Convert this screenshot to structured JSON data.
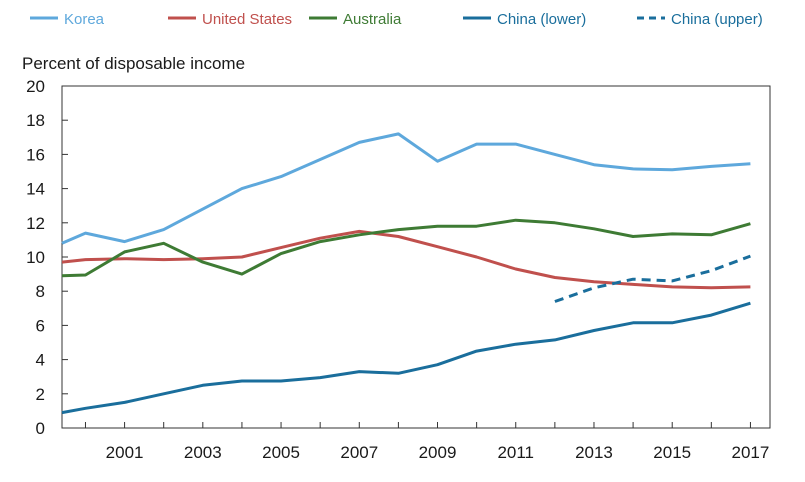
{
  "chart_data": {
    "type": "line",
    "ylabel": "Percent of disposable income",
    "xlabel": "",
    "title": "",
    "xlim": [
      1999.4,
      2017.5
    ],
    "ylim": [
      0,
      20
    ],
    "yticks": [
      0,
      2,
      4,
      6,
      8,
      10,
      12,
      14,
      16,
      18,
      20
    ],
    "xticks": [
      2001,
      2003,
      2005,
      2007,
      2009,
      2011,
      2013,
      2015,
      2017
    ],
    "legend_position": "top",
    "series": [
      {
        "name": "Korea",
        "color": "#5ea8dc",
        "dash": "solid",
        "x": [
          1999.4,
          2000,
          2001,
          2002,
          2003,
          2004,
          2005,
          2006,
          2007,
          2008,
          2009,
          2010,
          2011,
          2012,
          2013,
          2014,
          2015,
          2016,
          2017
        ],
        "values": [
          10.8,
          11.4,
          10.9,
          11.6,
          12.8,
          14.0,
          14.7,
          15.7,
          16.7,
          17.2,
          15.6,
          16.6,
          16.6,
          16.0,
          15.4,
          15.15,
          15.1,
          15.3,
          15.45
        ]
      },
      {
        "name": "United States",
        "color": "#c0504d",
        "dash": "solid",
        "x": [
          1999.4,
          2000,
          2001,
          2002,
          2003,
          2004,
          2005,
          2006,
          2007,
          2008,
          2009,
          2010,
          2011,
          2012,
          2013,
          2014,
          2015,
          2016,
          2017
        ],
        "values": [
          9.7,
          9.85,
          9.9,
          9.85,
          9.9,
          10.0,
          10.55,
          11.1,
          11.5,
          11.2,
          10.6,
          10.0,
          9.3,
          8.8,
          8.55,
          8.4,
          8.25,
          8.2,
          8.25
        ]
      },
      {
        "name": "Australia",
        "color": "#3e7b34",
        "dash": "solid",
        "x": [
          1999.4,
          2000,
          2001,
          2002,
          2003,
          2004,
          2005,
          2006,
          2007,
          2008,
          2009,
          2010,
          2011,
          2012,
          2013,
          2014,
          2015,
          2016,
          2017
        ],
        "values": [
          8.9,
          8.95,
          10.3,
          10.8,
          9.7,
          9.0,
          10.2,
          10.9,
          11.3,
          11.6,
          11.8,
          11.8,
          12.15,
          12.0,
          11.65,
          11.2,
          11.35,
          11.3,
          11.95
        ]
      },
      {
        "name": "China (lower)",
        "color": "#1a6e9c",
        "dash": "solid",
        "x": [
          1999.4,
          2000,
          2001,
          2002,
          2003,
          2004,
          2005,
          2006,
          2007,
          2008,
          2009,
          2010,
          2011,
          2012,
          2013,
          2014,
          2015,
          2016,
          2017
        ],
        "values": [
          0.9,
          1.15,
          1.5,
          2.0,
          2.5,
          2.75,
          2.75,
          2.95,
          3.3,
          3.2,
          3.7,
          4.5,
          4.9,
          5.15,
          5.7,
          6.15,
          6.15,
          6.6,
          7.3
        ]
      },
      {
        "name": "China (upper)",
        "color": "#1a6e9c",
        "dash": "dashed",
        "x": [
          2012,
          2013,
          2014,
          2015,
          2016,
          2017
        ],
        "values": [
          7.4,
          8.2,
          8.7,
          8.6,
          9.2,
          10.05
        ]
      }
    ]
  }
}
